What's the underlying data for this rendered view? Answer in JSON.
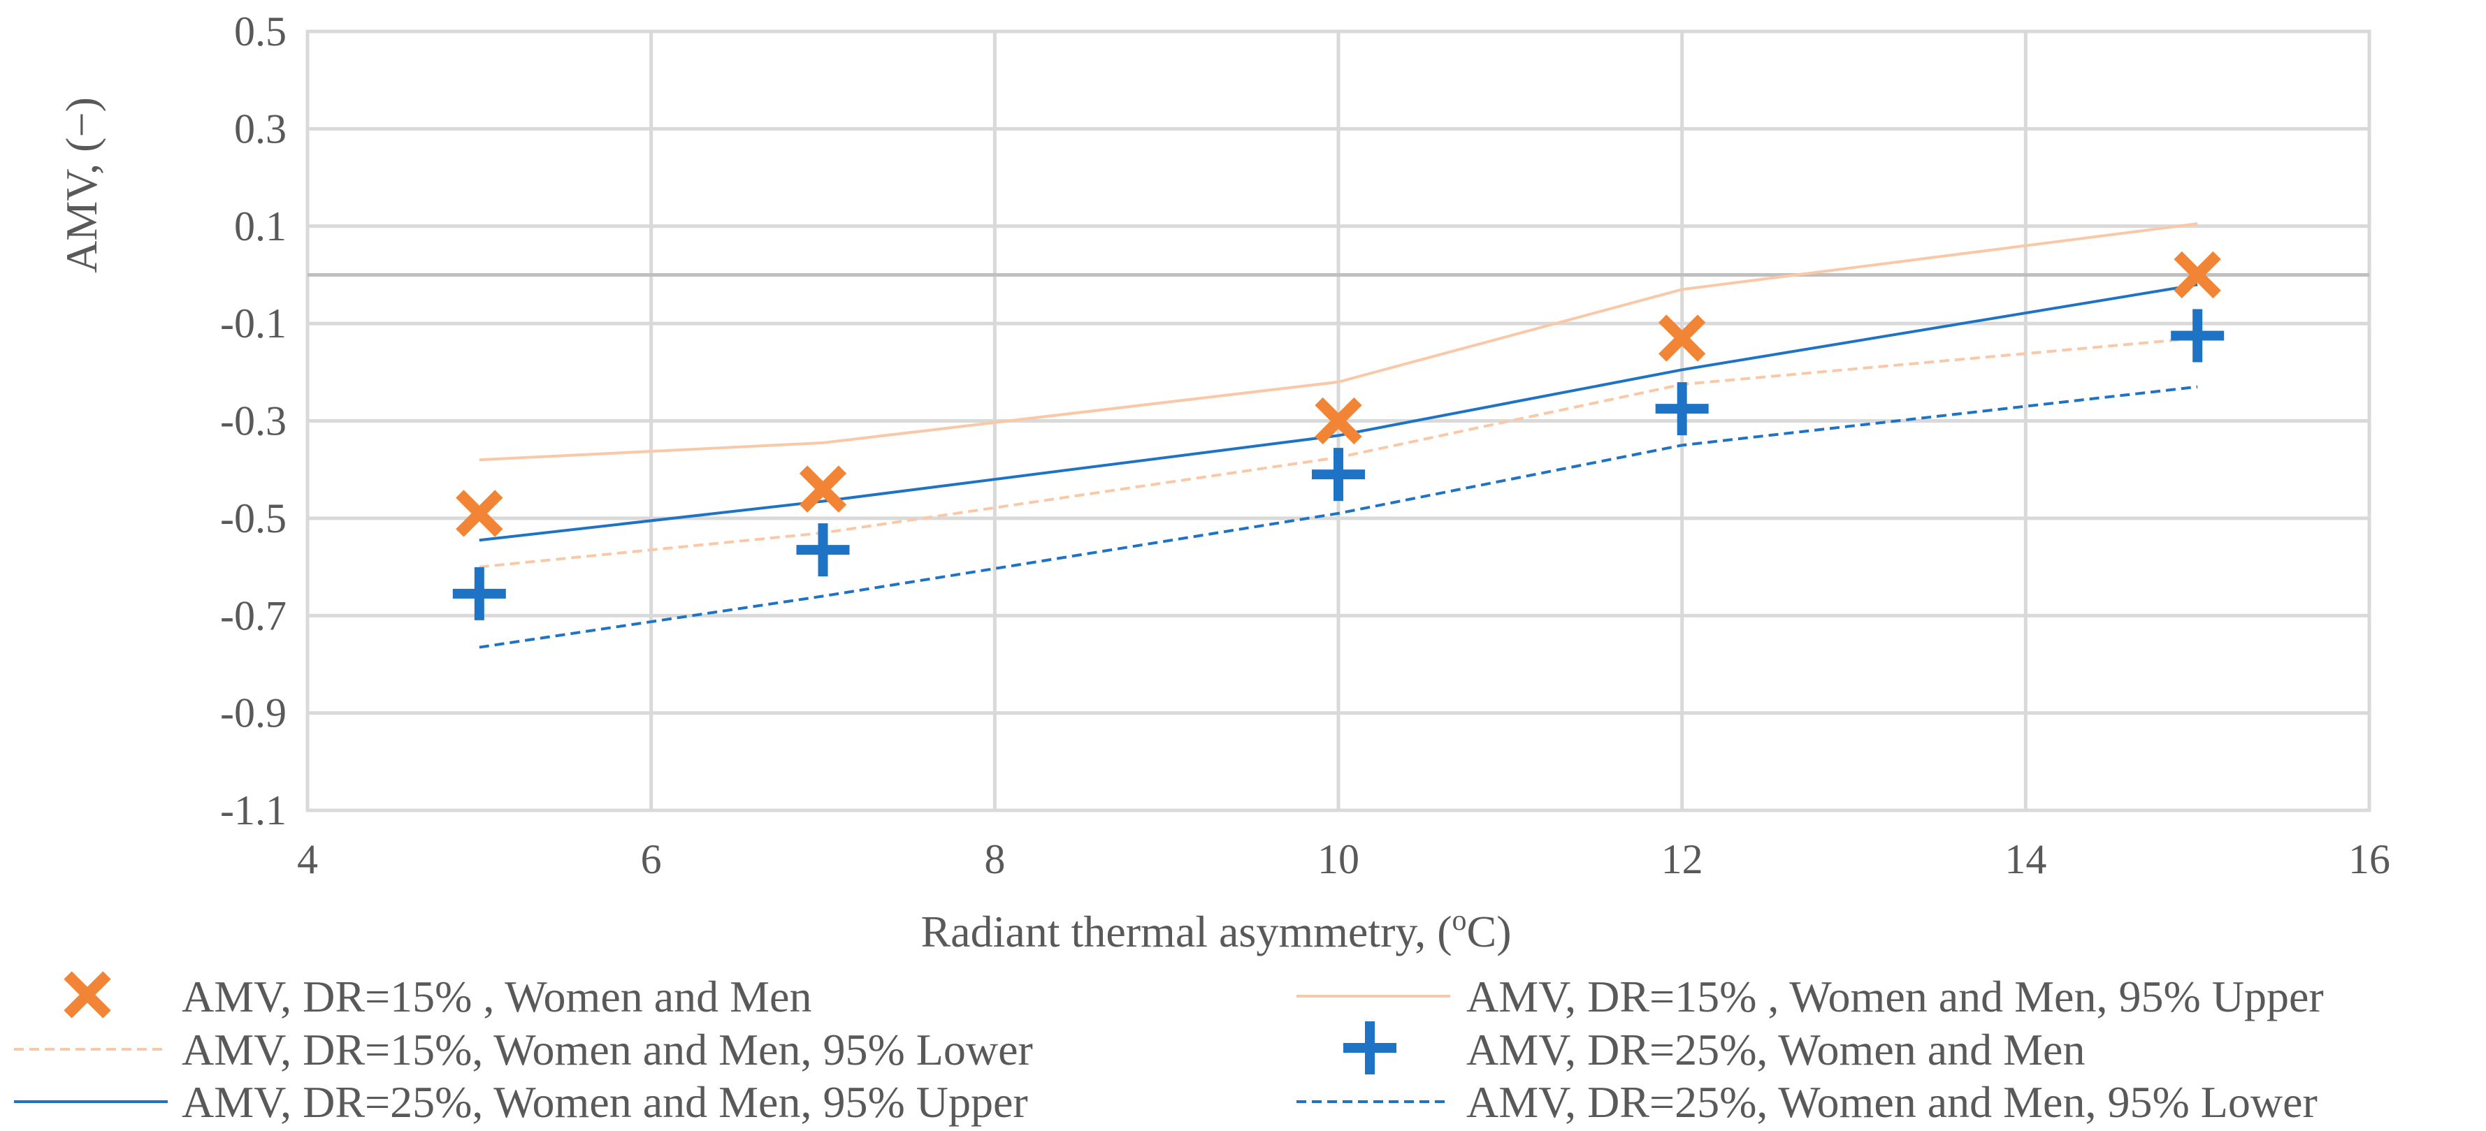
{
  "chart_data": {
    "type": "scatter",
    "title": "",
    "xlabel": "Radiant thermal asymmetry, (",
    "xlabel_superscript": "o",
    "xlabel_suffix": "C)",
    "ylabel": "AMV, (−)",
    "xlim": [
      4,
      16
    ],
    "ylim": [
      -1.1,
      0.5
    ],
    "x_ticks": [
      4,
      6,
      8,
      10,
      12,
      14,
      16
    ],
    "x_tick_labels": [
      "4",
      "6",
      "8",
      "10",
      "12",
      "14",
      "16"
    ],
    "y_ticks": [
      0.5,
      0.3,
      0.1,
      -0.1,
      -0.3,
      -0.5,
      -0.7,
      -0.9,
      -1.1
    ],
    "y_tick_labels": [
      "0.5",
      "0.3",
      "0.1",
      "-0.1",
      "-0.3",
      "-0.5",
      "-0.7",
      "-0.9",
      "-1.1"
    ],
    "grid": true,
    "zero_line": true,
    "legend_position": "bottom",
    "colors": {
      "orange": "#F28535",
      "orange_light": "#F9C9A7",
      "blue": "#1F73C4",
      "grid": "#D9D9D9",
      "zero": "#BFBFBF"
    },
    "series": [
      {
        "name": "AMV, DR=15% , Women and Men",
        "kind": "marker",
        "marker": "x",
        "color": "#F28535",
        "x": [
          5,
          7,
          10,
          12,
          15
        ],
        "y": [
          -0.49,
          -0.44,
          -0.3,
          -0.13,
          0.0
        ]
      },
      {
        "name": "AMV, DR=15% , Women and Men, 95% Upper",
        "kind": "line",
        "style": "solid",
        "color": "#F9C9A7",
        "x": [
          5,
          7,
          10,
          12,
          15
        ],
        "y": [
          -0.38,
          -0.345,
          -0.22,
          -0.03,
          0.105
        ]
      },
      {
        "name": "AMV, DR=15%, Women and Men, 95% Lower",
        "kind": "line",
        "style": "dashed",
        "color": "#F9C9A7",
        "x": [
          5,
          7,
          10,
          12,
          15
        ],
        "y": [
          -0.6,
          -0.53,
          -0.375,
          -0.225,
          -0.13
        ]
      },
      {
        "name": "AMV, DR=25%, Women and Men",
        "kind": "marker",
        "marker": "plus",
        "color": "#1F73C4",
        "x": [
          5,
          7,
          10,
          12,
          15
        ],
        "y": [
          -0.655,
          -0.565,
          -0.41,
          -0.275,
          -0.125
        ]
      },
      {
        "name": "AMV, DR=25%, Women and Men, 95% Upper",
        "kind": "line",
        "style": "solid",
        "color": "#1F73C4",
        "x": [
          5,
          7,
          10,
          12,
          15
        ],
        "y": [
          -0.545,
          -0.465,
          -0.33,
          -0.195,
          -0.02
        ]
      },
      {
        "name": "AMV, DR=25%, Women and Men, 95% Lower",
        "kind": "line",
        "style": "dashed",
        "color": "#1F73C4",
        "x": [
          5,
          7,
          10,
          12,
          15
        ],
        "y": [
          -0.765,
          -0.66,
          -0.49,
          -0.35,
          -0.23
        ]
      }
    ]
  }
}
